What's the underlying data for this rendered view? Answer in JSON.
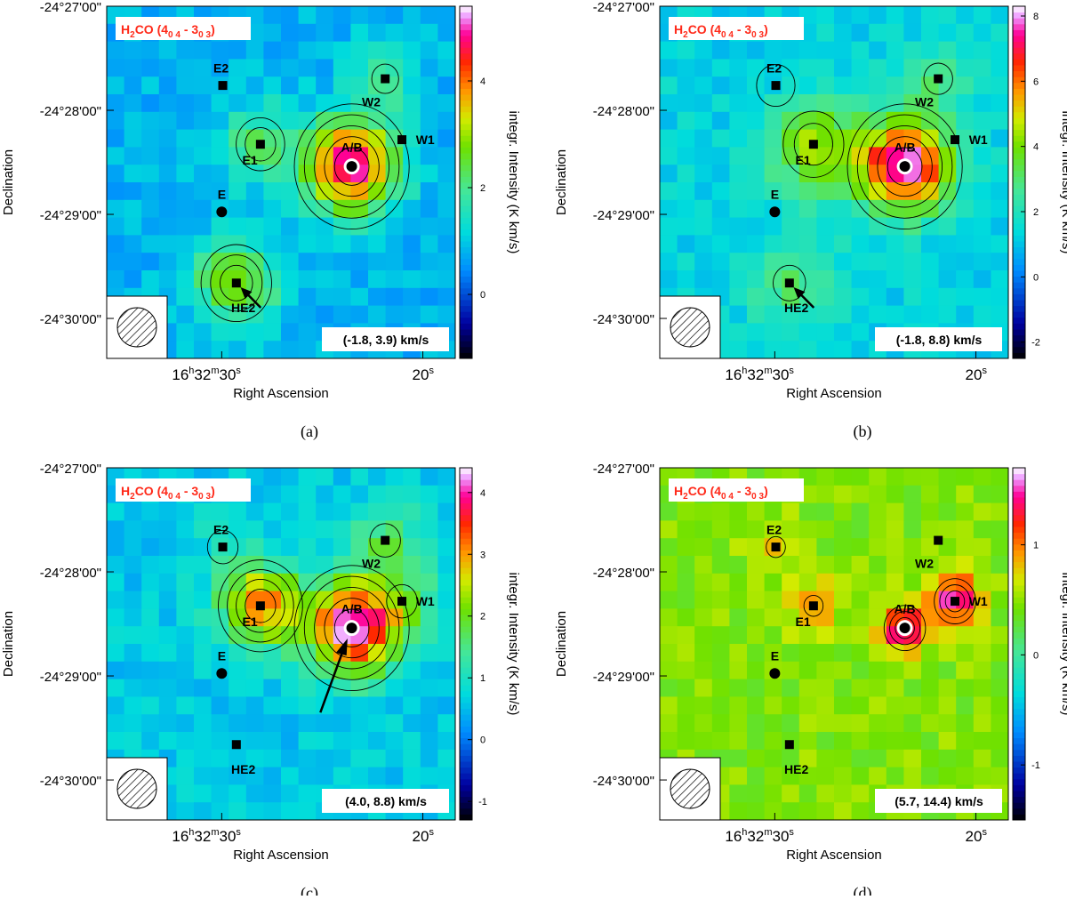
{
  "figure": {
    "captions": [
      "(a)",
      "(b)",
      "(c)",
      "(d)"
    ]
  },
  "chart_data": [
    {
      "type": "heatmap",
      "panel": "a",
      "caption": "(a)",
      "molecule": "H₂CO (4",
      "transition": {
        "mol": "H",
        "sub2": "2",
        "co": "CO (4",
        "s1": "0 4",
        "mid": " - 3",
        "s2": "0 3",
        "end": ")"
      },
      "velocity_range": "(-1.8, 3.9) km/s",
      "xlabel": "Right Ascension",
      "ylabel": "Declination",
      "colorbar_label": "integr. Intensity (K km/s)",
      "colorbar_ticks": [
        "0",
        "2",
        "4"
      ],
      "cbar_range": [
        -1.2,
        5.4
      ],
      "xticks": {
        "hms_h": "16",
        "hms_m": "32",
        "hms_s": "30",
        "s20": "20"
      },
      "yticks": [
        "-24°27'00\"",
        "-24°28'00\"",
        "-24°29'00\"",
        "-24°30'00\""
      ],
      "background_value": 0.8,
      "peaks": [
        {
          "name": "A/B",
          "value": 5.0,
          "sigma": 0.09
        },
        {
          "name": "HE2",
          "value": 3.0,
          "sigma": 0.085
        },
        {
          "name": "E1",
          "value": 2.2,
          "sigma": 0.08
        },
        {
          "name": "W2",
          "value": 1.8,
          "sigma": 0.07
        }
      ],
      "sources": [
        {
          "name": "E2",
          "marker": "square"
        },
        {
          "name": "E1",
          "marker": "square"
        },
        {
          "name": "E",
          "marker": "circle"
        },
        {
          "name": "HE2",
          "marker": "square"
        },
        {
          "name": "W2",
          "marker": "square"
        },
        {
          "name": "W1",
          "marker": "square"
        },
        {
          "name": "A/B",
          "marker": "circle"
        }
      ]
    },
    {
      "type": "heatmap",
      "panel": "b",
      "caption": "(b)",
      "velocity_range": "(-1.8, 8.8) km/s",
      "transition": {
        "mol": "H",
        "sub2": "2",
        "co": "CO (4",
        "s1": "0 4",
        "mid": " - 3",
        "s2": "0 3",
        "end": ")"
      },
      "xlabel": "Right Ascension",
      "ylabel": "Declination",
      "colorbar_label": "integr. Intensity (K km/s)",
      "colorbar_ticks": [
        "-2",
        "0",
        "2",
        "4",
        "6",
        "8"
      ],
      "cbar_range": [
        -2.5,
        8.3
      ],
      "xticks": {
        "hms_h": "16",
        "hms_m": "32",
        "hms_s": "30",
        "s20": "20"
      },
      "yticks": [
        "-24°27'00\"",
        "-24°28'00\"",
        "-24°29'00\"",
        "-24°30'00\""
      ],
      "background_value": 1.3,
      "peaks": [
        {
          "name": "A/B",
          "value": 8.0,
          "sigma": 0.09
        },
        {
          "name": "E1",
          "value": 4.5,
          "sigma": 0.1
        },
        {
          "name": "HE2",
          "value": 3.0,
          "sigma": 0.085
        },
        {
          "name": "W2",
          "value": 2.8,
          "sigma": 0.075
        },
        {
          "name": "E2",
          "value": 1.0,
          "sigma": 0.1
        }
      ],
      "sources": [
        {
          "name": "E2",
          "marker": "square"
        },
        {
          "name": "E1",
          "marker": "square"
        },
        {
          "name": "E",
          "marker": "circle"
        },
        {
          "name": "HE2",
          "marker": "square"
        },
        {
          "name": "W2",
          "marker": "square"
        },
        {
          "name": "W1",
          "marker": "square"
        },
        {
          "name": "A/B",
          "marker": "circle"
        }
      ]
    },
    {
      "type": "heatmap",
      "panel": "c",
      "caption": "(c)",
      "velocity_range": "(4.0, 8.8) km/s",
      "transition": {
        "mol": "H",
        "sub2": "2",
        "co": "CO (4",
        "s1": "0 4",
        "mid": " - 3",
        "s2": "0 3",
        "end": ")"
      },
      "xlabel": "Right Ascension",
      "ylabel": "Declination",
      "colorbar_label": "integr. Intensity (K km/s)",
      "colorbar_ticks": [
        "-1",
        "0",
        "1",
        "2",
        "3",
        "4"
      ],
      "cbar_range": [
        -1.3,
        4.4
      ],
      "xticks": {
        "hms_h": "16",
        "hms_m": "32",
        "hms_s": "30",
        "s20": "20"
      },
      "yticks": [
        "-24°27'00\"",
        "-24°28'00\"",
        "-24°29'00\"",
        "-24°30'00\""
      ],
      "background_value": 0.6,
      "peaks": [
        {
          "name": "A/B",
          "value": 4.2,
          "sigma": 0.09
        },
        {
          "name": "E1",
          "value": 3.2,
          "sigma": 0.08
        },
        {
          "name": "W2",
          "value": 1.6,
          "sigma": 0.08
        },
        {
          "name": "W1",
          "value": 1.5,
          "sigma": 0.08
        },
        {
          "name": "E2",
          "value": 0.9,
          "sigma": 0.08
        }
      ],
      "sources": [
        {
          "name": "E2",
          "marker": "square"
        },
        {
          "name": "E1",
          "marker": "square"
        },
        {
          "name": "E",
          "marker": "circle"
        },
        {
          "name": "HE2",
          "marker": "square"
        },
        {
          "name": "W2",
          "marker": "square"
        },
        {
          "name": "W1",
          "marker": "square"
        },
        {
          "name": "A/B",
          "marker": "circle"
        }
      ]
    },
    {
      "type": "heatmap",
      "panel": "d",
      "caption": "(d)",
      "velocity_range": "(5.7, 14.4) km/s",
      "transition": {
        "mol": "H",
        "sub2": "2",
        "co": "CO (4",
        "s1": "0 4",
        "mid": " - 3",
        "s2": "0 3",
        "end": ")"
      },
      "xlabel": "Right Ascension",
      "ylabel": "Declination",
      "colorbar_label": "integr. Intensity (K km/s)",
      "colorbar_ticks": [
        "-1",
        "0",
        "1"
      ],
      "cbar_range": [
        -1.5,
        1.7
      ],
      "xticks": {
        "hms_h": "16",
        "hms_m": "32",
        "hms_s": "30",
        "s20": "20"
      },
      "yticks": [
        "-24°27'00\"",
        "-24°28'00\"",
        "-24°29'00\"",
        "-24°30'00\""
      ],
      "background_value": 0.45,
      "peaks": [
        {
          "name": "A/B",
          "value": 1.5,
          "sigma": 0.05
        },
        {
          "name": "W1",
          "value": 1.5,
          "sigma": 0.05
        },
        {
          "name": "E1",
          "value": 1.0,
          "sigma": 0.05
        },
        {
          "name": "E2",
          "value": 0.9,
          "sigma": 0.05
        }
      ],
      "sources": [
        {
          "name": "E2",
          "marker": "square"
        },
        {
          "name": "E1",
          "marker": "square"
        },
        {
          "name": "E",
          "marker": "circle"
        },
        {
          "name": "HE2",
          "marker": "square"
        },
        {
          "name": "W2",
          "marker": "square"
        },
        {
          "name": "W1",
          "marker": "square"
        },
        {
          "name": "A/B",
          "marker": "circle"
        }
      ]
    }
  ]
}
